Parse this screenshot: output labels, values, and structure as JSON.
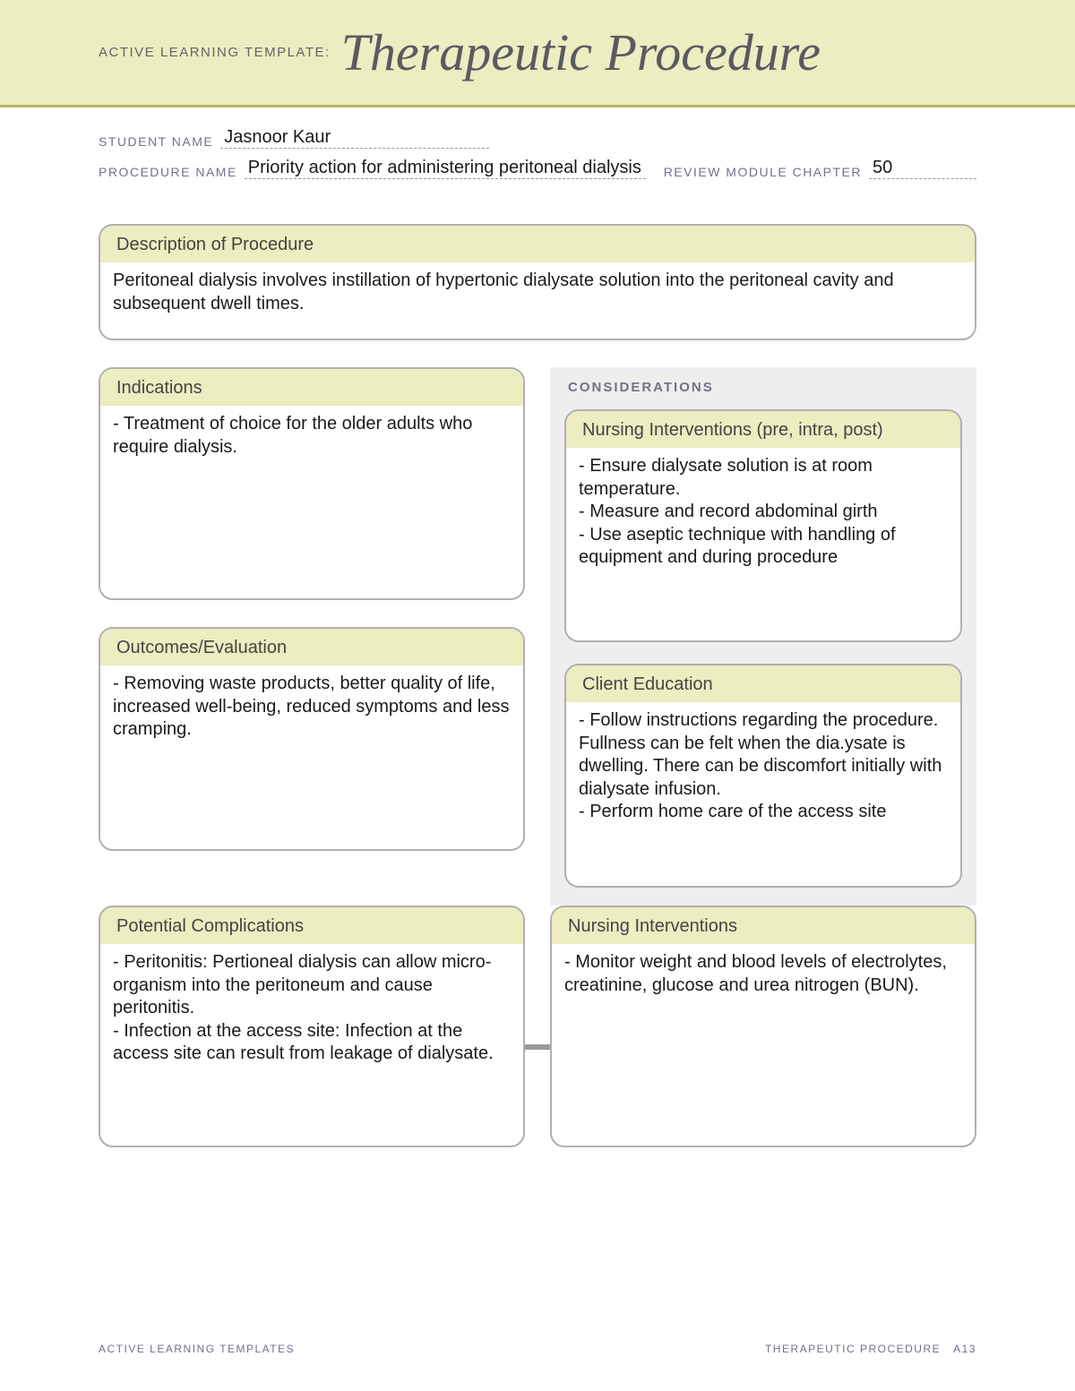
{
  "header": {
    "prefix": "ACTIVE LEARNING TEMPLATE:",
    "title": "Therapeutic Procedure"
  },
  "meta": {
    "student_name_label": "STUDENT NAME",
    "student_name": "Jasnoor Kaur",
    "procedure_name_label": "PROCEDURE NAME",
    "procedure_name": "Priority action for administering peritoneal dialysis",
    "chapter_label": "REVIEW MODULE CHAPTER",
    "chapter": "50"
  },
  "colors": {
    "band_bg": "#ecedc0",
    "band_border": "#b4b85f",
    "box_border": "#b0b0b0",
    "considerations_bg": "#eeeeee",
    "meta_label": "#757085",
    "body_text": "#1a1a1a"
  },
  "sections": {
    "description": {
      "title": "Description of Procedure",
      "body": "Peritoneal dialysis involves instillation of hypertonic dialysate solution into the peritoneal cavity and subsequent dwell times."
    },
    "indications": {
      "title": "Indications",
      "body": "- Treatment of choice for the older adults who require dialysis."
    },
    "outcomes": {
      "title": "Outcomes/Evaluation",
      "body": "- Removing waste products, better quality of life, increased well-being, reduced symptoms and less cramping."
    },
    "considerations_label": "CONSIDERATIONS",
    "nursing_interventions_pip": {
      "title": "Nursing Interventions (pre, intra, post)",
      "body": "- Ensure dialysate solution is at room temperature.\n- Measure and record abdominal girth\n- Use aseptic technique with handling of equipment and during procedure"
    },
    "client_education": {
      "title": "Client Education",
      "body": "- Follow instructions regarding the procedure. Fullness can be felt when the dia.ysate is dwelling. There can be discomfort initially with dialysate infusion.\n- Perform home care of the access site"
    },
    "potential_complications": {
      "title": "Potential Complications",
      "body": "- Peritonitis: Pertioneal dialysis can allow micro-organism into the peritoneum and cause peritonitis.\n- Infection at the access site: Infection at the access site can result from leakage of dialysate."
    },
    "nursing_interventions_bottom": {
      "title": "Nursing Interventions",
      "body": "- Monitor weight and blood levels of electrolytes, creatinine, glucose and urea nitrogen (BUN)."
    }
  },
  "footer": {
    "left": "ACTIVE LEARNING TEMPLATES",
    "right_label": "THERAPEUTIC PROCEDURE",
    "page": "A13"
  }
}
